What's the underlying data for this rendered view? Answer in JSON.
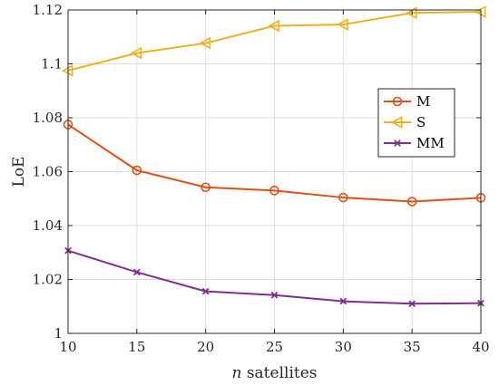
{
  "chart_data": {
    "type": "line",
    "x": [
      10,
      15,
      20,
      25,
      30,
      35,
      40
    ],
    "series": [
      {
        "name": "M",
        "values": [
          1.0775,
          1.0605,
          1.0542,
          1.053,
          1.0504,
          1.0489,
          1.0503
        ],
        "color": "#d95319",
        "marker": "circle"
      },
      {
        "name": "S",
        "values": [
          1.0975,
          1.104,
          1.1077,
          1.1141,
          1.1146,
          1.1189,
          1.1193
        ],
        "color": "#edb120",
        "marker": "triangle-left"
      },
      {
        "name": "MM",
        "values": [
          1.0307,
          1.0227,
          1.0156,
          1.0142,
          1.0119,
          1.011,
          1.0112
        ],
        "color": "#7e2f8e",
        "marker": "x"
      }
    ],
    "xlim": [
      10,
      40
    ],
    "ylim": [
      1.0,
      1.12
    ],
    "xticks": [
      "10",
      "15",
      "20",
      "25",
      "30",
      "35",
      "40"
    ],
    "yticks": [
      "1",
      "1.02",
      "1.04",
      "1.06",
      "1.08",
      "1.1",
      "1.12"
    ],
    "xlabel_italic": "n",
    "xlabel_rest": " satellites",
    "ylabel": "LoE",
    "grid": true,
    "legend_position": "right"
  }
}
